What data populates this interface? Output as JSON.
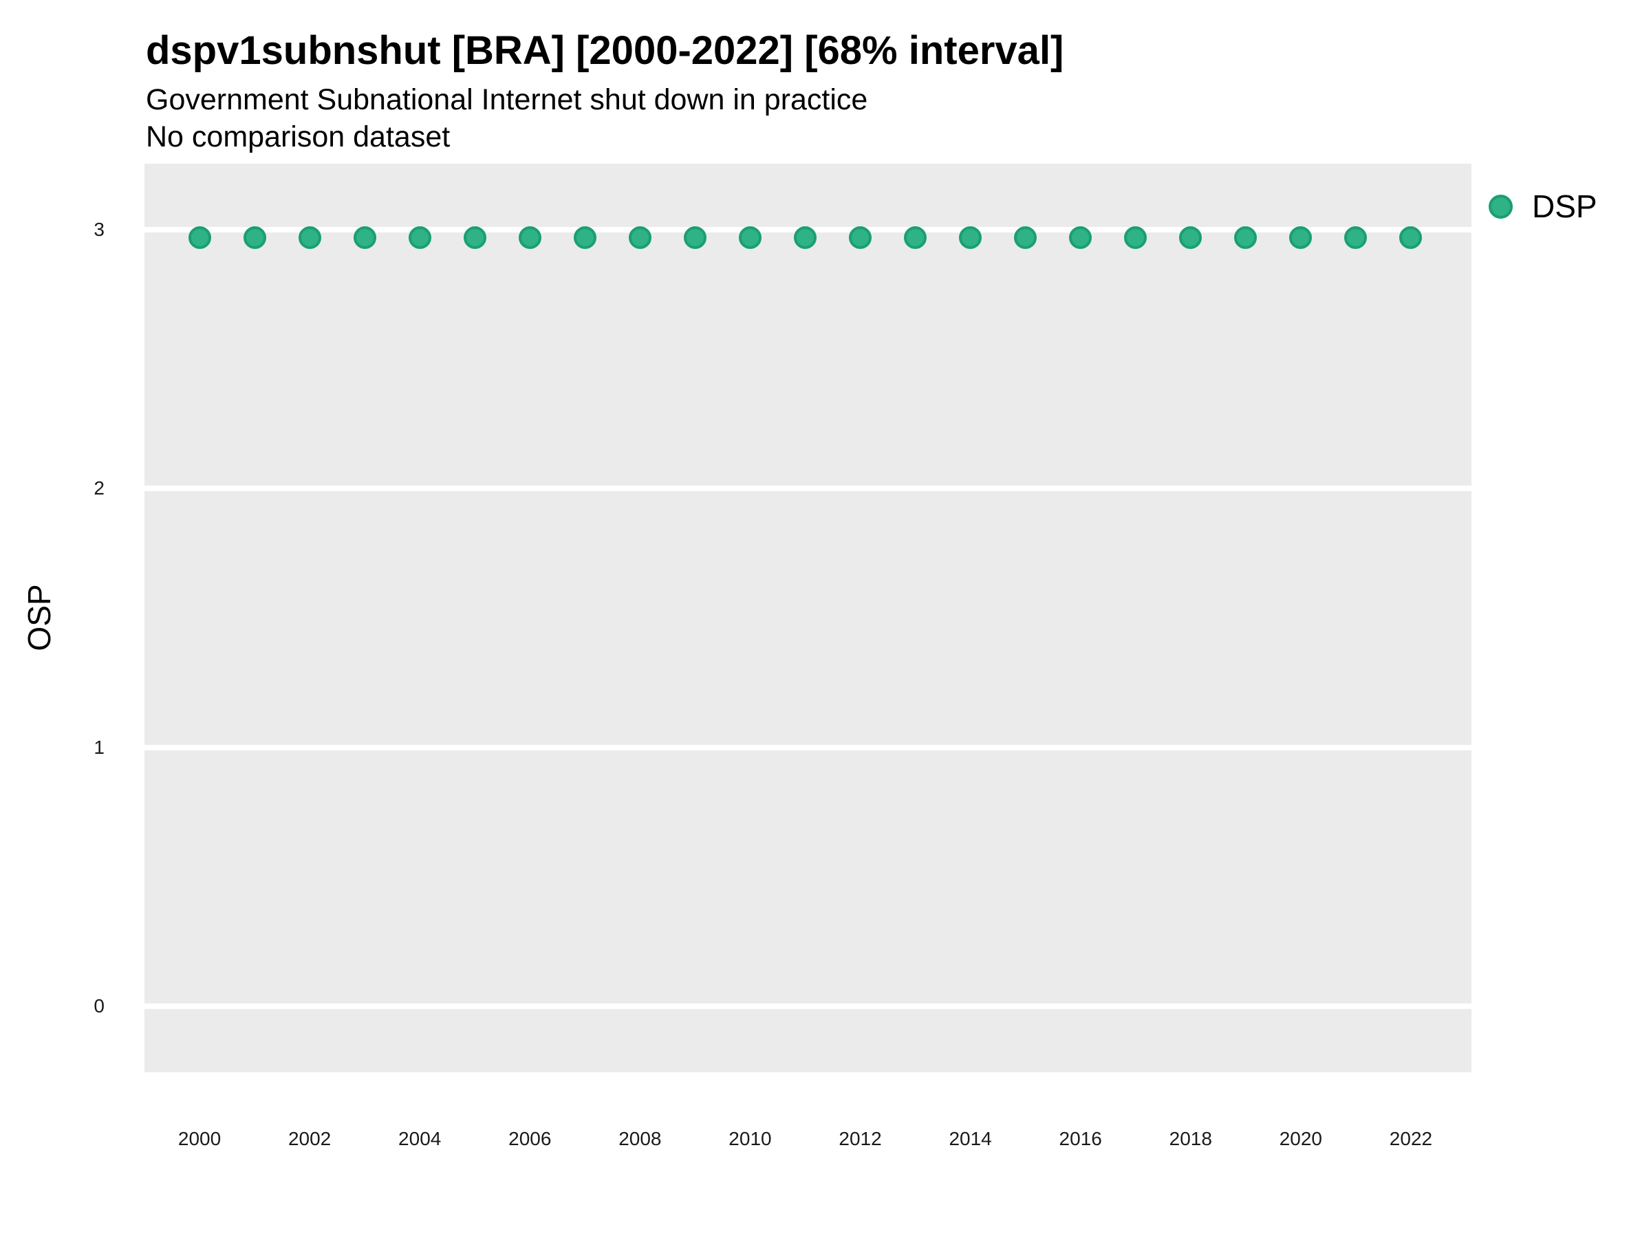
{
  "header": {
    "title": "dspv1subnshut [BRA] [2000-2022] [68% interval]",
    "subtitle": "Government Subnational Internet shut down in practice",
    "note": "No comparison dataset"
  },
  "legend": {
    "label": "DSP"
  },
  "colors": {
    "panel_bg": "#EBEBEB",
    "grid": "#FFFFFF",
    "point_fill": "#2FB286",
    "point_stroke": "#1AA070",
    "tick_text": "#1A1A1A"
  },
  "chart_data": {
    "type": "scatter",
    "title": "dspv1subnshut [BRA] [2000-2022] [68% interval]",
    "subtitle": "Government Subnational Internet shut down in practice",
    "note": "No comparison dataset",
    "xlabel": "",
    "ylabel": "OSP",
    "x": [
      2000,
      2001,
      2002,
      2003,
      2004,
      2005,
      2006,
      2007,
      2008,
      2009,
      2010,
      2011,
      2012,
      2013,
      2014,
      2015,
      2016,
      2017,
      2018,
      2019,
      2020,
      2021,
      2022
    ],
    "series": [
      {
        "name": "DSP",
        "values": [
          2.97,
          2.97,
          2.97,
          2.97,
          2.97,
          2.97,
          2.97,
          2.97,
          2.97,
          2.97,
          2.97,
          2.97,
          2.97,
          2.97,
          2.97,
          2.97,
          2.97,
          2.97,
          2.97,
          2.97,
          2.97,
          2.97,
          2.97
        ]
      }
    ],
    "xlim": [
      1999.0,
      2023.1
    ],
    "ylim": [
      -0.255,
      3.255
    ],
    "yticks": [
      0,
      1,
      2,
      3
    ],
    "xticks": [
      2000,
      2002,
      2004,
      2006,
      2008,
      2010,
      2012,
      2014,
      2016,
      2018,
      2020,
      2022
    ],
    "grid": "major-y",
    "legend_position": "right"
  }
}
